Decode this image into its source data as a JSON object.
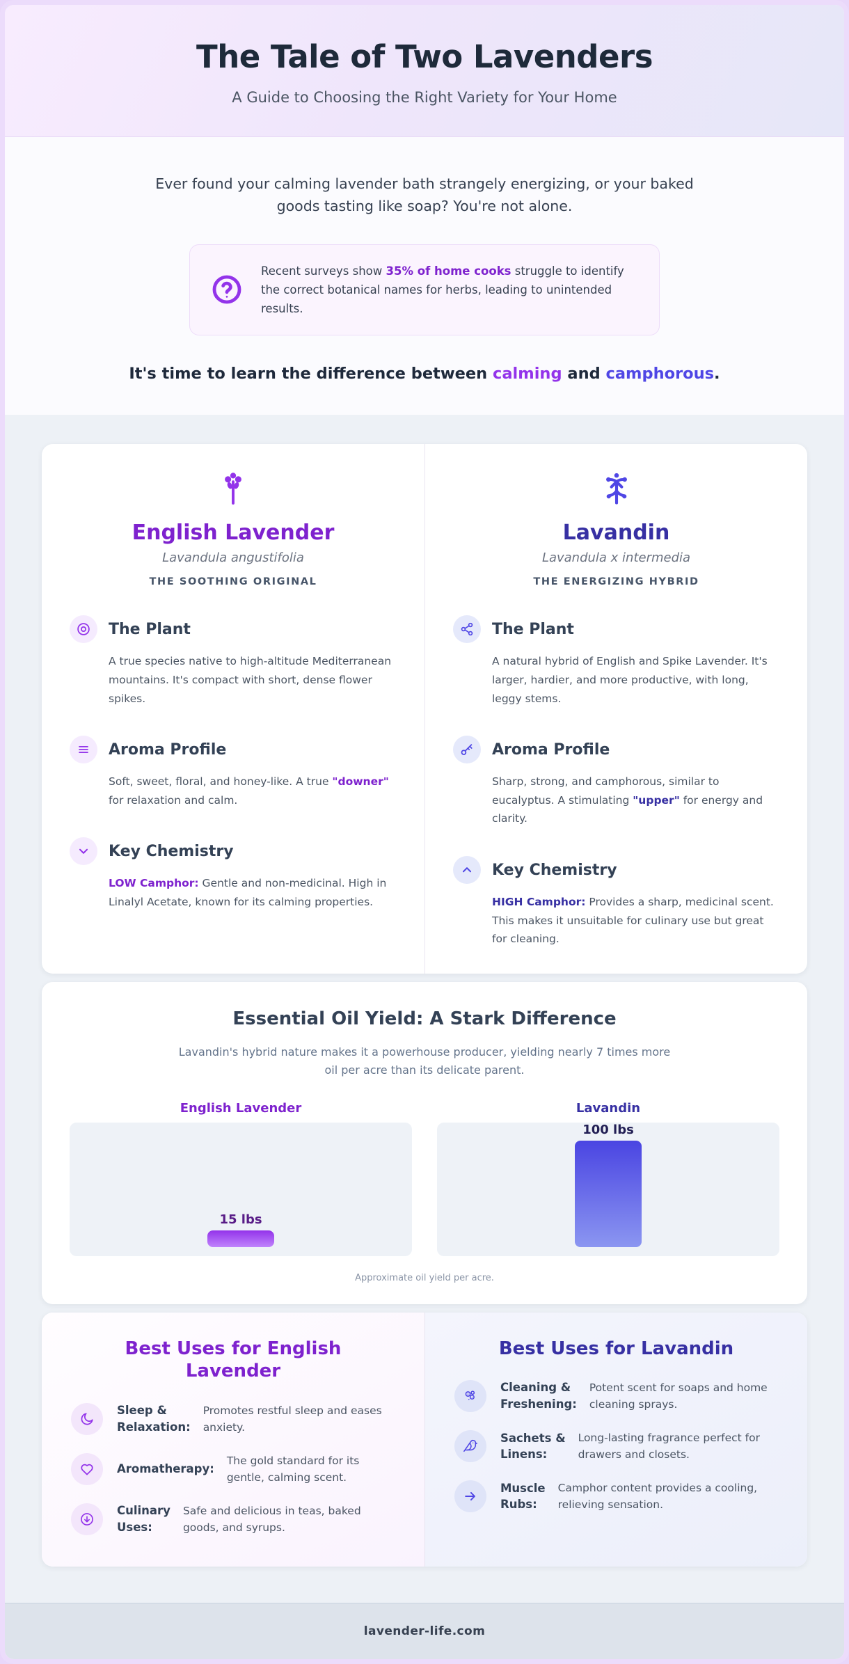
{
  "header": {
    "title": "The Tale of Two Lavenders",
    "subtitle": "A Guide to Choosing the Right Variety for Your Home"
  },
  "intro": {
    "hook": "Ever found your calming lavender bath strangely energizing, or your baked goods tasting like soap? You're not alone.",
    "fact": {
      "icon": "circle-question-icon",
      "pre": "Recent surveys show ",
      "highlight": "35% of home cooks",
      "post": " struggle to identify the correct botanical names for herbs, leading to unintended results."
    },
    "cta": {
      "pre": "It's time to learn the difference between ",
      "calming": "calming",
      "mid": " and ",
      "camphorous": "camphorous",
      "post": "."
    }
  },
  "varieties": {
    "english": {
      "icon": "lavender-flower-icon",
      "name": "English Lavender",
      "latin": "Lavandula angustifolia",
      "tagline": "THE SOOTHING ORIGINAL",
      "sections": [
        {
          "icon": "target-icon",
          "title": "The Plant",
          "pre": "A true species native to high-altitude Mediterranean mountains. It's compact with short, dense flower spikes.",
          "bold": "",
          "post": ""
        },
        {
          "icon": "lines-icon",
          "title": "Aroma Profile",
          "pre": "Soft, sweet, floral, and honey-like. A true ",
          "bold": "\"downer\"",
          "post": " for relaxation and calm."
        },
        {
          "icon": "chevron-down-icon",
          "title": "Key Chemistry",
          "pre": "",
          "bold": "LOW Camphor:",
          "post": " Gentle and non-medicinal. High in Linalyl Acetate, known for its calming properties."
        }
      ]
    },
    "lavandin": {
      "icon": "sprout-branch-icon",
      "name": "Lavandin",
      "latin": "Lavandula x intermedia",
      "tagline": "THE ENERGIZING HYBRID",
      "sections": [
        {
          "icon": "share-icon",
          "title": "The Plant",
          "pre": "A natural hybrid of English and Spike Lavender. It's larger, hardier, and more productive, with long, leggy stems.",
          "bold": "",
          "post": ""
        },
        {
          "icon": "key-icon",
          "title": "Aroma Profile",
          "pre": "Sharp, strong, and camphorous, similar to eucalyptus. A stimulating ",
          "bold": "\"upper\"",
          "post": " for energy and clarity."
        },
        {
          "icon": "chevron-up-icon",
          "title": "Key Chemistry",
          "pre": "",
          "bold": "HIGH Camphor:",
          "post": " Provides a sharp, medicinal scent. This makes it unsuitable for culinary use but great for cleaning."
        }
      ]
    }
  },
  "chart_data": {
    "type": "bar",
    "title": "Essential Oil Yield: A Stark Difference",
    "subtitle": "Lavandin's hybrid nature makes it a powerhouse producer, yielding nearly 7 times more oil per acre than its delicate parent.",
    "caption": "Approximate oil yield per acre.",
    "categories": [
      "English Lavender",
      "Lavandin"
    ],
    "values": [
      15,
      100
    ],
    "value_labels": [
      "15 lbs",
      "100 lbs"
    ],
    "unit": "lbs",
    "ylim": [
      0,
      100
    ],
    "grid": false,
    "legend": "none",
    "layout": "two separate mini-panels, value label above each bar"
  },
  "best_uses": {
    "english": {
      "title": "Best Uses for English Lavender",
      "items": [
        {
          "icon": "moon-icon",
          "label": "Sleep &\nRelaxation:",
          "text": "Promotes restful sleep and eases anxiety."
        },
        {
          "icon": "heart-icon",
          "label": "Aromatherapy:",
          "text": "The gold standard for its gentle, calming scent."
        },
        {
          "icon": "arrow-down-circle-icon",
          "label": "Culinary\nUses:",
          "text": "Safe and delicious in teas, baked goods, and syrups."
        }
      ]
    },
    "lavandin": {
      "title": "Best Uses for Lavandin",
      "items": [
        {
          "icon": "bubbles-icon",
          "label": "Cleaning &\nFreshening:",
          "text": "Potent scent for soaps and home cleaning sprays."
        },
        {
          "icon": "bird-icon",
          "label": "Sachets &\nLinens:",
          "text": "Long-lasting fragrance perfect for drawers and closets."
        },
        {
          "icon": "arrow-right-icon",
          "label": "Muscle\nRubs:",
          "text": "Camphor content provides a cooling, relieving sensation."
        }
      ]
    }
  },
  "footer": {
    "site": "lavender-life.com"
  },
  "colors": {
    "purple_primary": "#9333ea",
    "purple_heading": "#7e22ce",
    "purple_value": "#581c87",
    "indigo_primary": "#4f46e5",
    "indigo_heading": "#3730a3",
    "indigo_value": "#221f54",
    "heading_text": "#1e2a3a",
    "body_text": "#4b5563",
    "header_gradient_start": "#f8ecfe",
    "header_gradient_end": "#e6e7f8",
    "section_bg": "#edf1f6",
    "footer_bg": "#dde3eb",
    "bar_english_gradient": [
      "#9333ea",
      "#c084fc"
    ],
    "bar_lavandin_gradient": [
      "#4a45e2",
      "#8b96f1"
    ],
    "page_border": "#ecdcfb"
  }
}
